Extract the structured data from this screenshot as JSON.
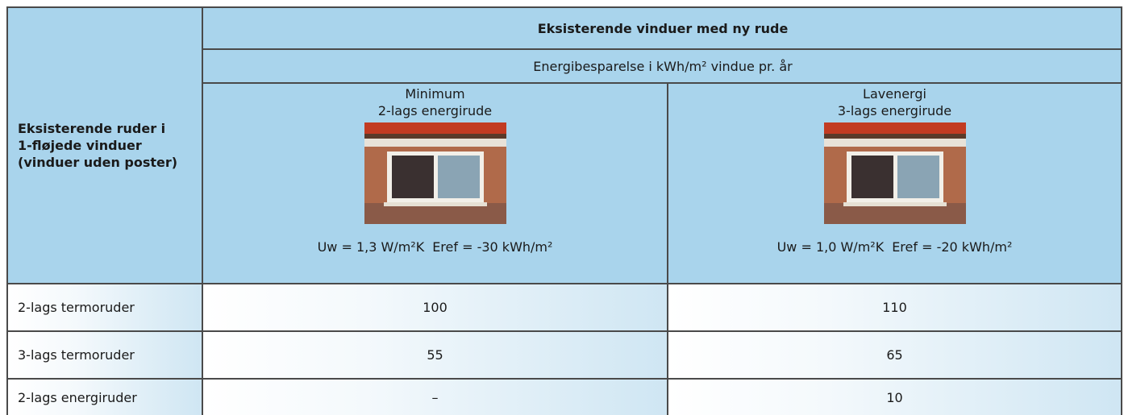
{
  "header": {
    "row_label_lines": [
      "Eksisterende ruder i",
      "1-fløjede vinduer",
      "(vinduer uden poster)"
    ],
    "group": "Eksisterende vinduer med ny rude",
    "subgroup": "Energibesparelse i kWh/m² vindue pr. år"
  },
  "columns": [
    {
      "title": "Minimum",
      "subtitle": "2-lags energirude",
      "uw": "Uw = 1,3 W/m²K",
      "eref": "Eref = -30 kWh/m²"
    },
    {
      "title": "Lavenergi",
      "subtitle": "3-lags energirude",
      "uw": "Uw =  1,0 W/m²K",
      "eref": "Eref = -20 kWh/m²"
    }
  ],
  "rows": [
    {
      "label": "2-lags termoruder",
      "values": [
        100,
        110
      ]
    },
    {
      "label": "3-lags termoruder",
      "values": [
        55,
        65
      ]
    },
    {
      "label": "2-lags energiruder",
      "values": [
        "–",
        10
      ]
    }
  ]
}
